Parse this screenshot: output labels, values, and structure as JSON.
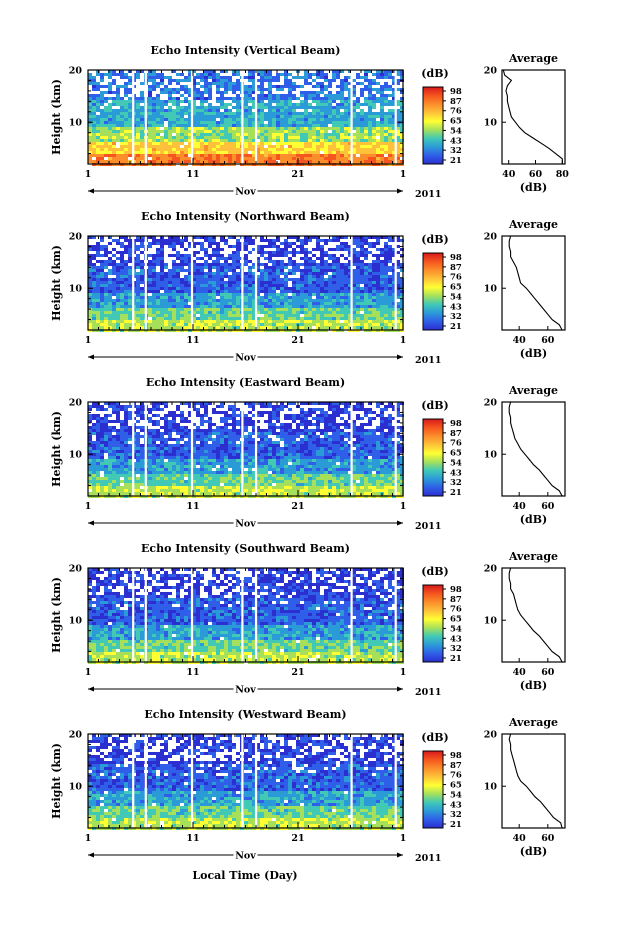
{
  "figure": {
    "xlabel": "Local Time (Day)",
    "month_label": "Nov",
    "year_label": "2011",
    "ylabel": "Height (km)",
    "colorbar_unit": "(dB)",
    "colorbar_labels": [
      "98",
      "87",
      "76",
      "65",
      "54",
      "43",
      "32",
      "21"
    ],
    "colorbar_colors": [
      "#d7191c",
      "#f5551e",
      "#fc8d2b",
      "#fdc23a",
      "#ffff33",
      "#a6e05a",
      "#41c9b6",
      "#2b9bd8",
      "#2f5ee8",
      "#2b2fcf"
    ],
    "avg_title": "Average",
    "avg_xlabel": "(dB)"
  },
  "chart_data": [
    {
      "type": "heatmap",
      "title": "Echo Intensity (Vertical Beam)",
      "xlabel": "Nov",
      "ylabel": "Height (km)",
      "x_ticks": [
        "1",
        "11",
        "21",
        "1"
      ],
      "y_ticks": [
        "20",
        "10"
      ],
      "xlim": [
        1,
        31
      ],
      "ylim": [
        2,
        20
      ],
      "colorbar_range_db": [
        21,
        98
      ],
      "profile": {
        "title": "Average",
        "xlabel": "(dB)",
        "x_ticks": [
          "40",
          "60",
          "80"
        ],
        "xlim": [
          35,
          82
        ],
        "heights": [
          2,
          3,
          4,
          5,
          6,
          7,
          8,
          9,
          10,
          11,
          12,
          13,
          14,
          15,
          16,
          17,
          18,
          19,
          20
        ],
        "values_db": [
          80,
          80,
          75,
          70,
          64,
          58,
          52,
          48,
          45,
          42,
          41,
          40,
          39,
          39,
          38,
          39,
          42,
          37,
          36
        ]
      }
    },
    {
      "type": "heatmap",
      "title": "Echo Intensity (Northward Beam)",
      "xlabel": "Nov",
      "ylabel": "Height (km)",
      "x_ticks": [
        "1",
        "11",
        "21",
        "1"
      ],
      "y_ticks": [
        "20",
        "10"
      ],
      "xlim": [
        1,
        31
      ],
      "ylim": [
        2,
        20
      ],
      "colorbar_range_db": [
        21,
        98
      ],
      "profile": {
        "title": "Average",
        "xlabel": "(dB)",
        "x_ticks": [
          "40",
          "60"
        ],
        "xlim": [
          28,
          72
        ],
        "heights": [
          2,
          3,
          4,
          5,
          6,
          7,
          8,
          9,
          10,
          11,
          12,
          13,
          14,
          15,
          16,
          17,
          18,
          19,
          20
        ],
        "values_db": [
          70,
          68,
          63,
          60,
          57,
          54,
          51,
          48,
          45,
          41,
          40,
          39,
          38,
          36,
          34,
          34,
          33,
          33,
          34
        ]
      }
    },
    {
      "type": "heatmap",
      "title": "Echo Intensity (Eastward Beam)",
      "xlabel": "Nov",
      "ylabel": "Height (km)",
      "x_ticks": [
        "1",
        "11",
        "21",
        "1"
      ],
      "y_ticks": [
        "20",
        "10"
      ],
      "xlim": [
        1,
        31
      ],
      "ylim": [
        2,
        20
      ],
      "colorbar_range_db": [
        21,
        98
      ],
      "profile": {
        "title": "Average",
        "xlabel": "(dB)",
        "x_ticks": [
          "40",
          "60"
        ],
        "xlim": [
          28,
          72
        ],
        "heights": [
          2,
          3,
          4,
          5,
          6,
          7,
          8,
          9,
          10,
          11,
          12,
          13,
          14,
          15,
          16,
          17,
          18,
          19,
          20
        ],
        "values_db": [
          70,
          68,
          63,
          60,
          57,
          54,
          50,
          47,
          44,
          41,
          39,
          37,
          36,
          35,
          34,
          34,
          33,
          33,
          34
        ]
      }
    },
    {
      "type": "heatmap",
      "title": "Echo Intensity (Southward Beam)",
      "xlabel": "Nov",
      "ylabel": "Height (km)",
      "x_ticks": [
        "1",
        "11",
        "21",
        "1"
      ],
      "y_ticks": [
        "20",
        "10"
      ],
      "xlim": [
        1,
        31
      ],
      "ylim": [
        2,
        20
      ],
      "colorbar_range_db": [
        21,
        98
      ],
      "profile": {
        "title": "Average",
        "xlabel": "(dB)",
        "x_ticks": [
          "40",
          "60"
        ],
        "xlim": [
          28,
          72
        ],
        "heights": [
          2,
          3,
          4,
          5,
          6,
          7,
          8,
          9,
          10,
          11,
          12,
          13,
          14,
          15,
          16,
          17,
          18,
          19,
          20
        ],
        "values_db": [
          70,
          68,
          63,
          60,
          57,
          54,
          50,
          47,
          44,
          41,
          39,
          38,
          37,
          36,
          34,
          34,
          33,
          33,
          34
        ]
      }
    },
    {
      "type": "heatmap",
      "title": "Echo Intensity (Westward Beam)",
      "xlabel": "Nov",
      "ylabel": "Height (km)",
      "x_ticks": [
        "1",
        "11",
        "21",
        "1"
      ],
      "y_ticks": [
        "20",
        "10"
      ],
      "xlim": [
        1,
        31
      ],
      "ylim": [
        2,
        20
      ],
      "colorbar_range_db": [
        21,
        98
      ],
      "profile": {
        "title": "Average",
        "xlabel": "(dB)",
        "x_ticks": [
          "40",
          "60"
        ],
        "xlim": [
          28,
          72
        ],
        "heights": [
          2,
          3,
          4,
          5,
          6,
          7,
          8,
          9,
          10,
          11,
          12,
          13,
          14,
          15,
          16,
          17,
          18,
          19,
          20
        ],
        "values_db": [
          70,
          69,
          64,
          61,
          58,
          55,
          51,
          48,
          45,
          41,
          39,
          38,
          37,
          36,
          35,
          34,
          34,
          33,
          34
        ]
      }
    }
  ]
}
